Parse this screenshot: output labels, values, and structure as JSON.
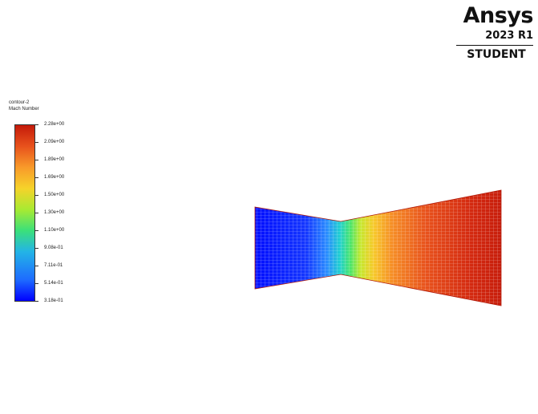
{
  "logo": {
    "brand": "Ansys",
    "version": "2023 R1",
    "edition": "STUDENT"
  },
  "legend": {
    "contour_name": "contour-2",
    "variable": "Mach Number",
    "ticks": [
      "2.28e+00",
      "2.09e+00",
      "1.89e+00",
      "1.69e+00",
      "1.50e+00",
      "1.30e+00",
      "1.10e+00",
      "9.08e-01",
      "7.11e-01",
      "5.14e-01",
      "3.18e-01"
    ],
    "colormap": [
      "#0000ff",
      "#1e6bff",
      "#23b4e6",
      "#3be07a",
      "#a8ea32",
      "#f6d32a",
      "#f89a2a",
      "#e8521c",
      "#c41a0a"
    ]
  },
  "plot": {
    "subject": "nozzle-mesh-contour"
  }
}
